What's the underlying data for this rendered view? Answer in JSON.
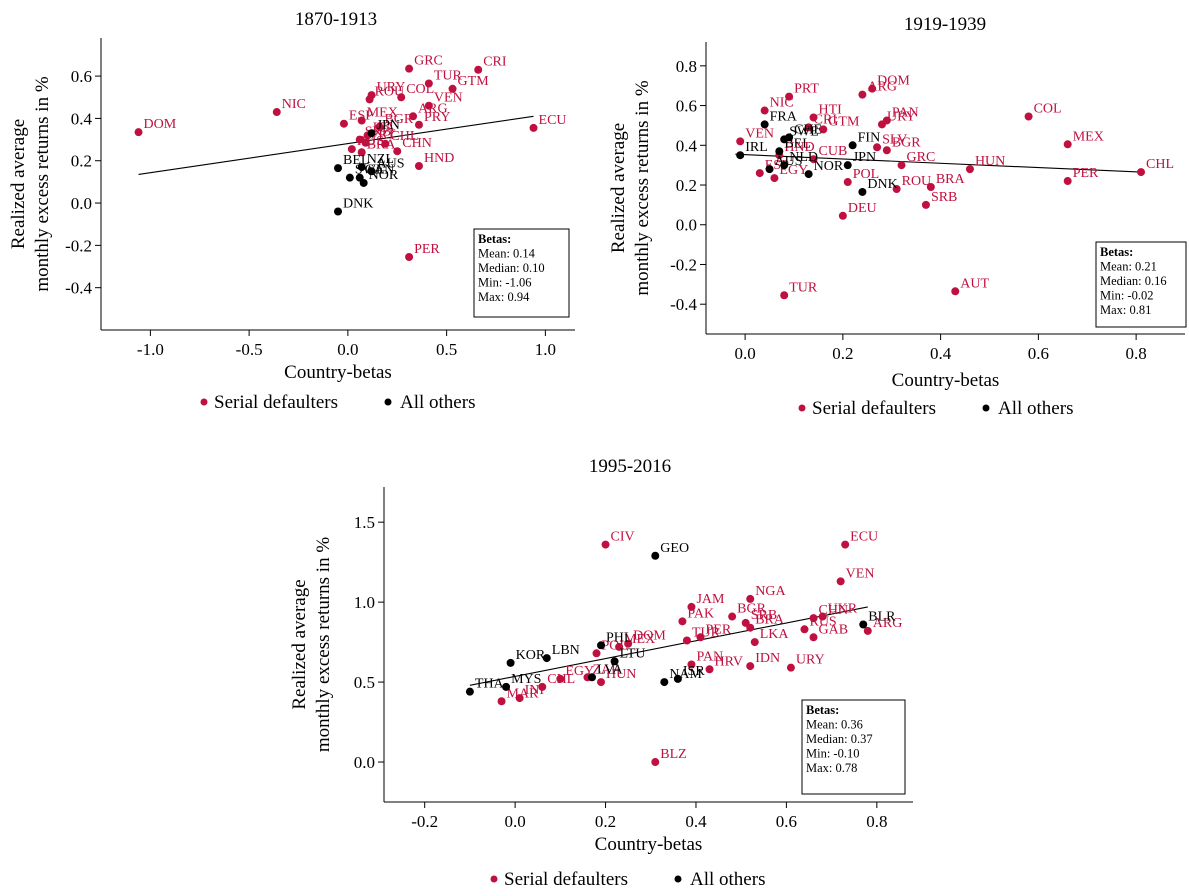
{
  "colors": {
    "serial": "#c0103f",
    "others": "#000000"
  },
  "legend": {
    "serial": "Serial defaulters",
    "others": "All others"
  },
  "chart_data": [
    {
      "type": "scatter",
      "title": "1870-1913",
      "xlabel": "Country-betas",
      "ylabel": "Realized average monthly excess returns in %",
      "xlim": [
        -1.25,
        1.15
      ],
      "ylim": [
        -0.6,
        0.78
      ],
      "xticks": [
        "-1.0",
        "-0.5",
        "0.0",
        "0.5",
        "1.0"
      ],
      "yticks": [
        "-0.4",
        "-0.2",
        "0.0",
        "0.2",
        "0.4",
        "0.6"
      ],
      "fit": {
        "x": [
          -1.06,
          0.94
        ],
        "y": [
          0.135,
          0.41
        ]
      },
      "stats": {
        "title": "Betas:",
        "lines": [
          "Mean: 0.14",
          "Median: 0.10",
          "Min: -1.06",
          "Max: 0.94"
        ]
      },
      "series": [
        {
          "name": "Serial defaulters",
          "group": "serial",
          "points": [
            {
              "label": "DOM",
              "x": -1.06,
              "y": 0.335
            },
            {
              "label": "NIC",
              "x": -0.36,
              "y": 0.43
            },
            {
              "label": "GRC",
              "x": 0.31,
              "y": 0.635
            },
            {
              "label": "CRI",
              "x": 0.66,
              "y": 0.63
            },
            {
              "label": "TUR",
              "x": 0.41,
              "y": 0.565
            },
            {
              "label": "GTM",
              "x": 0.53,
              "y": 0.54
            },
            {
              "label": "URY",
              "x": 0.12,
              "y": 0.51
            },
            {
              "label": "ROU",
              "x": 0.11,
              "y": 0.49
            },
            {
              "label": "COL",
              "x": 0.27,
              "y": 0.5
            },
            {
              "label": "VEN",
              "x": 0.41,
              "y": 0.46
            },
            {
              "label": "ARG",
              "x": 0.33,
              "y": 0.41
            },
            {
              "label": "PRY",
              "x": 0.36,
              "y": 0.37
            },
            {
              "label": "ESP",
              "x": -0.02,
              "y": 0.375
            },
            {
              "label": "MEX",
              "x": 0.07,
              "y": 0.39
            },
            {
              "label": "BGR",
              "x": 0.16,
              "y": 0.36
            },
            {
              "label": "ITA",
              "x": 0.1,
              "y": 0.32
            },
            {
              "label": "PRT",
              "x": 0.09,
              "y": 0.285
            },
            {
              "label": "SRB",
              "x": 0.06,
              "y": 0.3
            },
            {
              "label": "RUS",
              "x": 0.02,
              "y": 0.255
            },
            {
              "label": "BRA",
              "x": 0.07,
              "y": 0.24
            },
            {
              "label": "CHL",
              "x": 0.19,
              "y": 0.28
            },
            {
              "label": "CHN",
              "x": 0.25,
              "y": 0.245
            },
            {
              "label": "HND",
              "x": 0.36,
              "y": 0.175
            },
            {
              "label": "ECU",
              "x": 0.94,
              "y": 0.355
            },
            {
              "label": "PER",
              "x": 0.31,
              "y": -0.255
            }
          ]
        },
        {
          "name": "All others",
          "group": "others",
          "points": [
            {
              "label": "JPN",
              "x": 0.12,
              "y": 0.33
            },
            {
              "label": "BEL",
              "x": -0.05,
              "y": 0.165
            },
            {
              "label": "NZL",
              "x": 0.07,
              "y": 0.17
            },
            {
              "label": "AUS",
              "x": 0.12,
              "y": 0.15
            },
            {
              "label": "SWE",
              "x": 0.01,
              "y": 0.12
            },
            {
              "label": "CAN",
              "x": 0.06,
              "y": 0.12
            },
            {
              "label": "NOR",
              "x": 0.08,
              "y": 0.095
            },
            {
              "label": "DNK",
              "x": -0.05,
              "y": -0.04
            }
          ]
        }
      ]
    },
    {
      "type": "scatter",
      "title": "1919-1939",
      "xlabel": "Country-betas",
      "ylabel": "Realized average monthly excess returns in %",
      "xlim": [
        -0.08,
        0.9
      ],
      "ylim": [
        -0.55,
        0.92
      ],
      "xticks": [
        "0.0",
        "0.2",
        "0.4",
        "0.6",
        "0.8"
      ],
      "yticks": [
        "-0.4",
        "-0.2",
        "0.0",
        "0.2",
        "0.4",
        "0.6",
        "0.8"
      ],
      "fit": {
        "x": [
          -0.02,
          0.81
        ],
        "y": [
          0.355,
          0.265
        ]
      },
      "stats": {
        "title": "Betas:",
        "lines": [
          "Mean: 0.21",
          "Median: 0.16",
          "Min: -0.02",
          "Max: 0.81"
        ]
      },
      "series": [
        {
          "name": "Serial defaulters",
          "group": "serial",
          "points": [
            {
              "label": "NIC",
              "x": 0.04,
              "y": 0.575
            },
            {
              "label": "PRT",
              "x": 0.09,
              "y": 0.645
            },
            {
              "label": "DOM",
              "x": 0.26,
              "y": 0.685
            },
            {
              "label": "ARG",
              "x": 0.24,
              "y": 0.655
            },
            {
              "label": "HTI",
              "x": 0.14,
              "y": 0.54
            },
            {
              "label": "GTM",
              "x": 0.16,
              "y": 0.48
            },
            {
              "label": "PAN",
              "x": 0.29,
              "y": 0.525
            },
            {
              "label": "URY",
              "x": 0.28,
              "y": 0.505
            },
            {
              "label": "VEN",
              "x": -0.01,
              "y": 0.42
            },
            {
              "label": "CRI",
              "x": 0.13,
              "y": 0.49
            },
            {
              "label": "SLV",
              "x": 0.27,
              "y": 0.39
            },
            {
              "label": "BGR",
              "x": 0.29,
              "y": 0.375
            },
            {
              "label": "HND",
              "x": 0.07,
              "y": 0.35
            },
            {
              "label": "CUB",
              "x": 0.14,
              "y": 0.33
            },
            {
              "label": "GRC",
              "x": 0.32,
              "y": 0.3
            },
            {
              "label": "POL",
              "x": 0.21,
              "y": 0.215
            },
            {
              "label": "ROU",
              "x": 0.31,
              "y": 0.18
            },
            {
              "label": "BRA",
              "x": 0.38,
              "y": 0.19
            },
            {
              "label": "SRB",
              "x": 0.37,
              "y": 0.1
            },
            {
              "label": "DEU",
              "x": 0.2,
              "y": 0.045
            },
            {
              "label": "EGY",
              "x": 0.06,
              "y": 0.235
            },
            {
              "label": "ESP",
              "x": 0.03,
              "y": 0.26
            },
            {
              "label": "HUN",
              "x": 0.46,
              "y": 0.28
            },
            {
              "label": "COL",
              "x": 0.58,
              "y": 0.545
            },
            {
              "label": "MEX",
              "x": 0.66,
              "y": 0.405
            },
            {
              "label": "PER",
              "x": 0.66,
              "y": 0.22
            },
            {
              "label": "CHL",
              "x": 0.81,
              "y": 0.265
            },
            {
              "label": "TUR",
              "x": 0.08,
              "y": -0.355
            },
            {
              "label": "AUT",
              "x": 0.43,
              "y": -0.335
            }
          ]
        },
        {
          "name": "All others",
          "group": "others",
          "points": [
            {
              "label": "FRA",
              "x": 0.04,
              "y": 0.505
            },
            {
              "label": "CHE",
              "x": 0.09,
              "y": 0.44
            },
            {
              "label": "SWE",
              "x": 0.08,
              "y": 0.43
            },
            {
              "label": "FIN",
              "x": 0.22,
              "y": 0.4
            },
            {
              "label": "IRL",
              "x": -0.01,
              "y": 0.35
            },
            {
              "label": "BEL",
              "x": 0.07,
              "y": 0.37
            },
            {
              "label": "JPN",
              "x": 0.21,
              "y": 0.3
            },
            {
              "label": "NLD",
              "x": 0.08,
              "y": 0.3
            },
            {
              "label": "NOR",
              "x": 0.13,
              "y": 0.255
            },
            {
              "label": "AUS",
              "x": 0.05,
              "y": 0.28
            },
            {
              "label": "DNK",
              "x": 0.24,
              "y": 0.165
            }
          ]
        }
      ]
    },
    {
      "type": "scatter",
      "title": "1995-2016",
      "xlabel": "Country-betas",
      "ylabel": "Realized average monthly excess returns in %",
      "xlim": [
        -0.29,
        0.88
      ],
      "ylim": [
        -0.25,
        1.72
      ],
      "xticks": [
        "-0.2",
        "0.0",
        "0.2",
        "0.4",
        "0.6",
        "0.8"
      ],
      "yticks": [
        "0.0",
        "0.5",
        "1.0",
        "1.5"
      ],
      "fit": {
        "x": [
          -0.1,
          0.78
        ],
        "y": [
          0.48,
          0.97
        ]
      },
      "stats": {
        "title": "Betas:",
        "lines": [
          "Mean: 0.36",
          "Median: 0.37",
          "Min: -0.10",
          "Max: 0.78"
        ]
      },
      "series": [
        {
          "name": "Serial defaulters",
          "group": "serial",
          "points": [
            {
              "label": "CIV",
              "x": 0.2,
              "y": 1.36
            },
            {
              "label": "ECU",
              "x": 0.73,
              "y": 1.36
            },
            {
              "label": "VEN",
              "x": 0.72,
              "y": 1.13
            },
            {
              "label": "NGA",
              "x": 0.52,
              "y": 1.02
            },
            {
              "label": "JAM",
              "x": 0.39,
              "y": 0.97
            },
            {
              "label": "BGR",
              "x": 0.48,
              "y": 0.91
            },
            {
              "label": "PAK",
              "x": 0.37,
              "y": 0.88
            },
            {
              "label": "SRB",
              "x": 0.51,
              "y": 0.87
            },
            {
              "label": "BRA",
              "x": 0.52,
              "y": 0.84
            },
            {
              "label": "CHN",
              "x": 0.66,
              "y": 0.9
            },
            {
              "label": "UKR",
              "x": 0.68,
              "y": 0.91
            },
            {
              "label": "RUS",
              "x": 0.64,
              "y": 0.83
            },
            {
              "label": "GAB",
              "x": 0.66,
              "y": 0.78
            },
            {
              "label": "ARG",
              "x": 0.78,
              "y": 0.82
            },
            {
              "label": "LKA",
              "x": 0.53,
              "y": 0.75
            },
            {
              "label": "PER",
              "x": 0.41,
              "y": 0.78
            },
            {
              "label": "TUR",
              "x": 0.38,
              "y": 0.76
            },
            {
              "label": "DOM",
              "x": 0.25,
              "y": 0.74
            },
            {
              "label": "MEX",
              "x": 0.23,
              "y": 0.72
            },
            {
              "label": "POL",
              "x": 0.18,
              "y": 0.68
            },
            {
              "label": "PAN",
              "x": 0.39,
              "y": 0.61
            },
            {
              "label": "HRV",
              "x": 0.43,
              "y": 0.58
            },
            {
              "label": "IDN",
              "x": 0.52,
              "y": 0.6
            },
            {
              "label": "URY",
              "x": 0.61,
              "y": 0.59
            },
            {
              "label": "EGY",
              "x": 0.1,
              "y": 0.52
            },
            {
              "label": "ZAF",
              "x": 0.16,
              "y": 0.53
            },
            {
              "label": "HUN",
              "x": 0.19,
              "y": 0.5
            },
            {
              "label": "CHL",
              "x": 0.06,
              "y": 0.47
            },
            {
              "label": "MAR",
              "x": -0.03,
              "y": 0.38
            },
            {
              "label": "INI",
              "x": 0.01,
              "y": 0.4
            },
            {
              "label": "BLZ",
              "x": 0.31,
              "y": 0.0
            }
          ]
        },
        {
          "name": "All others",
          "group": "others",
          "points": [
            {
              "label": "GEO",
              "x": 0.31,
              "y": 1.29
            },
            {
              "label": "PHL",
              "x": 0.19,
              "y": 0.73
            },
            {
              "label": "LBN",
              "x": 0.07,
              "y": 0.65
            },
            {
              "label": "KOR",
              "x": -0.01,
              "y": 0.62
            },
            {
              "label": "LTU",
              "x": 0.22,
              "y": 0.63
            },
            {
              "label": "THA",
              "x": -0.1,
              "y": 0.44
            },
            {
              "label": "MYS",
              "x": -0.02,
              "y": 0.47
            },
            {
              "label": "NAM",
              "x": 0.33,
              "y": 0.5
            },
            {
              "label": "ISR",
              "x": 0.36,
              "y": 0.52
            },
            {
              "label": "BLR",
              "x": 0.77,
              "y": 0.86
            },
            {
              "label": "LVA",
              "x": 0.17,
              "y": 0.53
            }
          ]
        }
      ]
    }
  ]
}
